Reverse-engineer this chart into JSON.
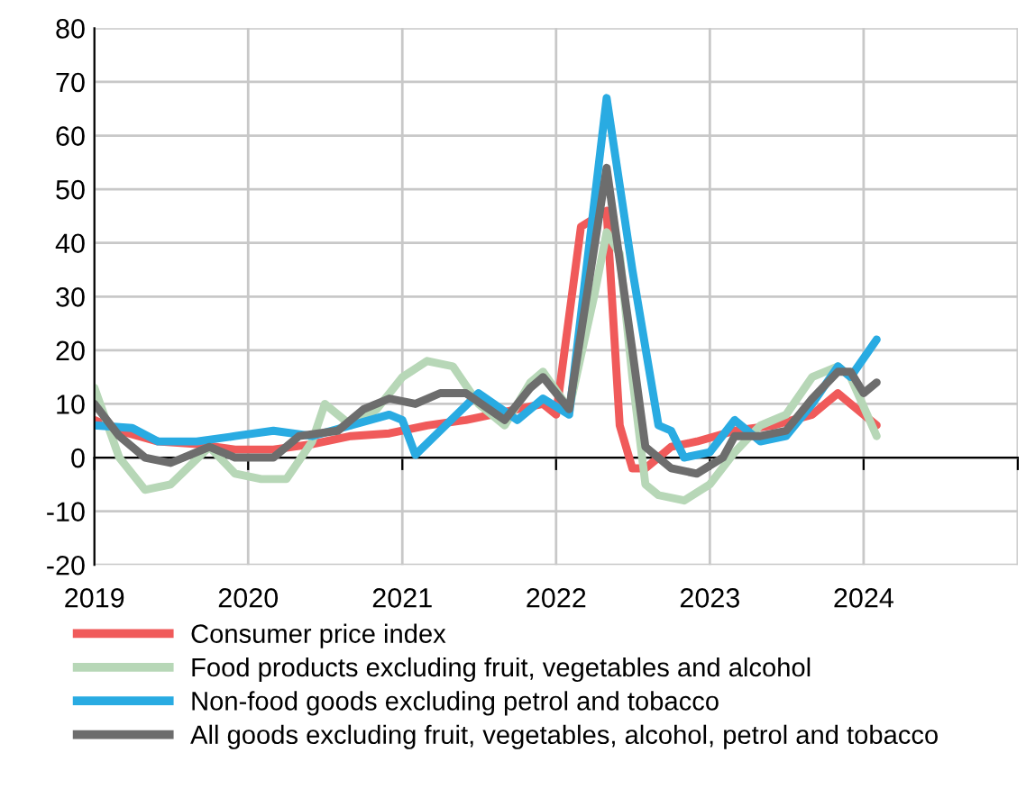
{
  "chart_data": {
    "type": "line",
    "xlim": [
      "2019-01-01",
      "2025-01-01"
    ],
    "xticks": [
      {
        "value": "2019-01-01",
        "label": "2019"
      },
      {
        "value": "2020-01-01",
        "label": "2020"
      },
      {
        "value": "2021-01-01",
        "label": "2021"
      },
      {
        "value": "2022-01-01",
        "label": "2022"
      },
      {
        "value": "2023-01-01",
        "label": "2023"
      },
      {
        "value": "2024-01-01",
        "label": "2024"
      },
      {
        "value": "2025-01-01",
        "label": null
      }
    ],
    "ylim": [
      -20,
      80
    ],
    "yticks": [
      -20,
      -10,
      0,
      10,
      20,
      30,
      40,
      50,
      60,
      70,
      80
    ],
    "grid": true,
    "legend": "bottom",
    "line_style": "solid",
    "marker": "none",
    "series": [
      {
        "name": "Consumer price index",
        "color": "#f05a5a",
        "x": [
          "2019-01",
          "2019-03",
          "2019-06",
          "2019-09",
          "2019-12",
          "2020-03",
          "2020-06",
          "2020-09",
          "2020-12",
          "2021-03",
          "2021-06",
          "2021-09",
          "2021-12",
          "2022-01",
          "2022-03",
          "2022-05",
          "2022-06",
          "2022-07",
          "2022-08",
          "2022-09",
          "2022-10",
          "2022-12",
          "2023-03",
          "2023-06",
          "2023-09",
          "2023-11",
          "2023-12",
          "2024-02"
        ],
        "values": [
          7,
          5,
          3,
          2.5,
          1.5,
          1.5,
          2.5,
          4,
          4.5,
          6,
          7,
          8.5,
          10,
          8,
          43,
          46,
          6,
          -2,
          -2,
          0,
          2,
          3,
          5,
          6,
          8,
          12,
          10,
          6
        ]
      },
      {
        "name": "Food products excluding fruit, vegetables and alcohol",
        "color": "#b7d7b7",
        "x": [
          "2019-01",
          "2019-03",
          "2019-05",
          "2019-07",
          "2019-10",
          "2019-12",
          "2020-02",
          "2020-04",
          "2020-06",
          "2020-07",
          "2020-09",
          "2020-11",
          "2021-01",
          "2021-03",
          "2021-05",
          "2021-07",
          "2021-09",
          "2021-11",
          "2021-12",
          "2022-02",
          "2022-04",
          "2022-05",
          "2022-06",
          "2022-07",
          "2022-08",
          "2022-09",
          "2022-11",
          "2023-01",
          "2023-03",
          "2023-05",
          "2023-07",
          "2023-09",
          "2023-11",
          "2023-12",
          "2024-02"
        ],
        "values": [
          13,
          0,
          -6,
          -5,
          2,
          -3,
          -4,
          -4,
          3,
          10,
          6,
          9,
          15,
          18,
          17,
          10,
          6,
          14,
          16,
          9,
          30,
          42,
          38,
          15,
          -5,
          -7,
          -8,
          -5,
          1,
          6,
          8,
          15,
          17,
          15,
          4
        ]
      },
      {
        "name": "Non-food goods excluding petrol and tobacco",
        "color": "#29abe2",
        "x": [
          "2019-01",
          "2019-04",
          "2019-06",
          "2019-09",
          "2019-12",
          "2020-03",
          "2020-06",
          "2020-09",
          "2020-12",
          "2021-01",
          "2021-02",
          "2021-07",
          "2021-10",
          "2021-12",
          "2022-02",
          "2022-05",
          "2022-07",
          "2022-09",
          "2022-10",
          "2022-11",
          "2023-01",
          "2023-03",
          "2023-05",
          "2023-07",
          "2023-09",
          "2023-11",
          "2023-12",
          "2024-02"
        ],
        "values": [
          6,
          5.5,
          3,
          3,
          4,
          5,
          4,
          6,
          8,
          7,
          0.5,
          12,
          7,
          11,
          8,
          67,
          35,
          6,
          5,
          0,
          1,
          7,
          3,
          4,
          10,
          17,
          15,
          22
        ]
      },
      {
        "name": "All goods excluding fruit, vegetables, alcohol, petrol and tobacco",
        "color": "#6d6d6d",
        "x": [
          "2019-01",
          "2019-03",
          "2019-05",
          "2019-07",
          "2019-10",
          "2019-12",
          "2020-03",
          "2020-05",
          "2020-08",
          "2020-10",
          "2020-12",
          "2021-02",
          "2021-04",
          "2021-06",
          "2021-09",
          "2021-11",
          "2021-12",
          "2022-02",
          "2022-05",
          "2022-07",
          "2022-08",
          "2022-10",
          "2022-12",
          "2023-02",
          "2023-03",
          "2023-05",
          "2023-07",
          "2023-09",
          "2023-11",
          "2023-12",
          "2024-01",
          "2024-02"
        ],
        "values": [
          10,
          4,
          0,
          -1,
          2,
          0,
          0,
          4,
          5,
          9,
          11,
          10,
          12,
          12,
          7,
          13,
          15,
          9,
          54,
          20,
          2,
          -2,
          -3,
          0,
          4,
          4,
          5,
          11,
          16,
          16,
          12,
          14
        ]
      }
    ]
  }
}
